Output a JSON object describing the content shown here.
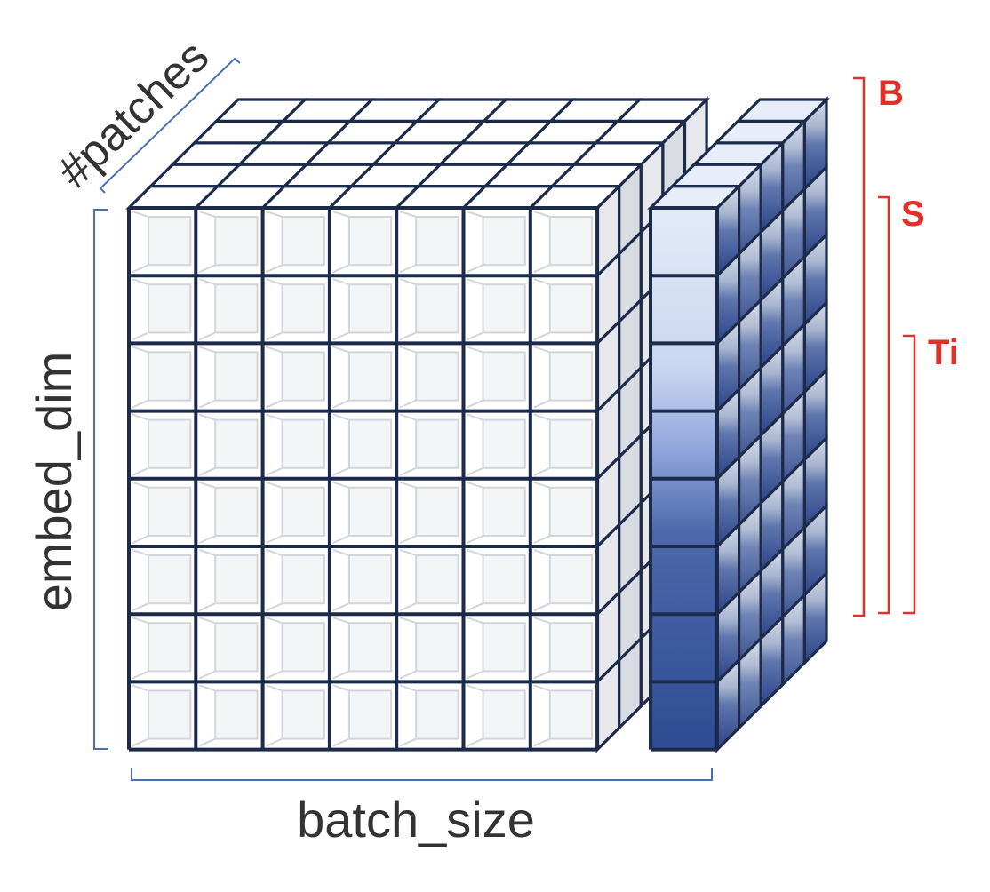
{
  "labels": {
    "patches": "#patches",
    "embed_dim": "embed_dim",
    "batch_size": "batch_size",
    "B": "B",
    "S": "S",
    "Ti": "Ti"
  },
  "colors": {
    "grid_stroke": "#1c2b4a",
    "cube_face": "#ffffff",
    "cube_side": "#e4e6ea",
    "cube_inner": "#d2d5dc",
    "bracket_blue": "#4a6fb5",
    "bracket_red": "#e0302a",
    "label_text": "#333333",
    "slice_light": "#dfe8f6",
    "slice_mid": "#8fa6dc",
    "slice_dark": "#2e4a92"
  },
  "grid": {
    "batch_size": 8,
    "embed_dim": 8,
    "patches": 5,
    "highlighted_slice": "last batch column"
  },
  "model_sizes": [
    "B",
    "S",
    "Ti"
  ]
}
